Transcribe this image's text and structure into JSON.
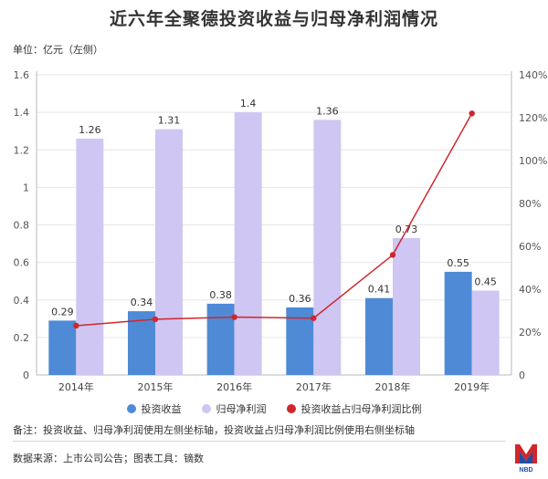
{
  "title": "近六年全聚德投资收益与归母净利润情况",
  "unit_label": "单位：亿元（左侧）",
  "legend": [
    {
      "label": "投资收益",
      "color": "#4f8ad6"
    },
    {
      "label": "归母净利润",
      "color": "#cfc6f3"
    },
    {
      "label": "投资收益占归母净利润比例",
      "color": "#d0262c"
    }
  ],
  "note": "备注：投资收益、归母净利润使用左侧坐标轴，投资收益占归母净利润比例使用右侧坐标轴",
  "source": "数据来源：上市公司公告；图表工具：镝数",
  "logo_text": "NBD",
  "chart_data": {
    "type": "bar",
    "categories": [
      "2014年",
      "2015年",
      "2016年",
      "2017年",
      "2018年",
      "2019年"
    ],
    "series": [
      {
        "name": "投资收益",
        "type": "bar",
        "axis": "left",
        "color": "#4f8ad6",
        "values": [
          0.29,
          0.34,
          0.38,
          0.36,
          0.41,
          0.55
        ]
      },
      {
        "name": "归母净利润",
        "type": "bar",
        "axis": "left",
        "color": "#cfc6f3",
        "values": [
          1.26,
          1.31,
          1.4,
          1.36,
          0.73,
          0.45
        ]
      },
      {
        "name": "投资收益占归母净利润比例",
        "type": "line",
        "axis": "right",
        "color": "#d0262c",
        "values": [
          23,
          26,
          27,
          26.5,
          56,
          122
        ]
      }
    ],
    "left_axis": {
      "min": 0,
      "max": 1.6,
      "ticks": [
        "0",
        "0.2",
        "0.4",
        "0.6",
        "0.8",
        "1",
        "1.2",
        "1.4",
        "1.6"
      ]
    },
    "right_axis": {
      "min": 0,
      "max": 140,
      "ticks": [
        "0",
        "20%",
        "40%",
        "60%",
        "80%",
        "100%",
        "120%",
        "140%"
      ]
    },
    "grid": true,
    "legend_position": "bottom"
  }
}
